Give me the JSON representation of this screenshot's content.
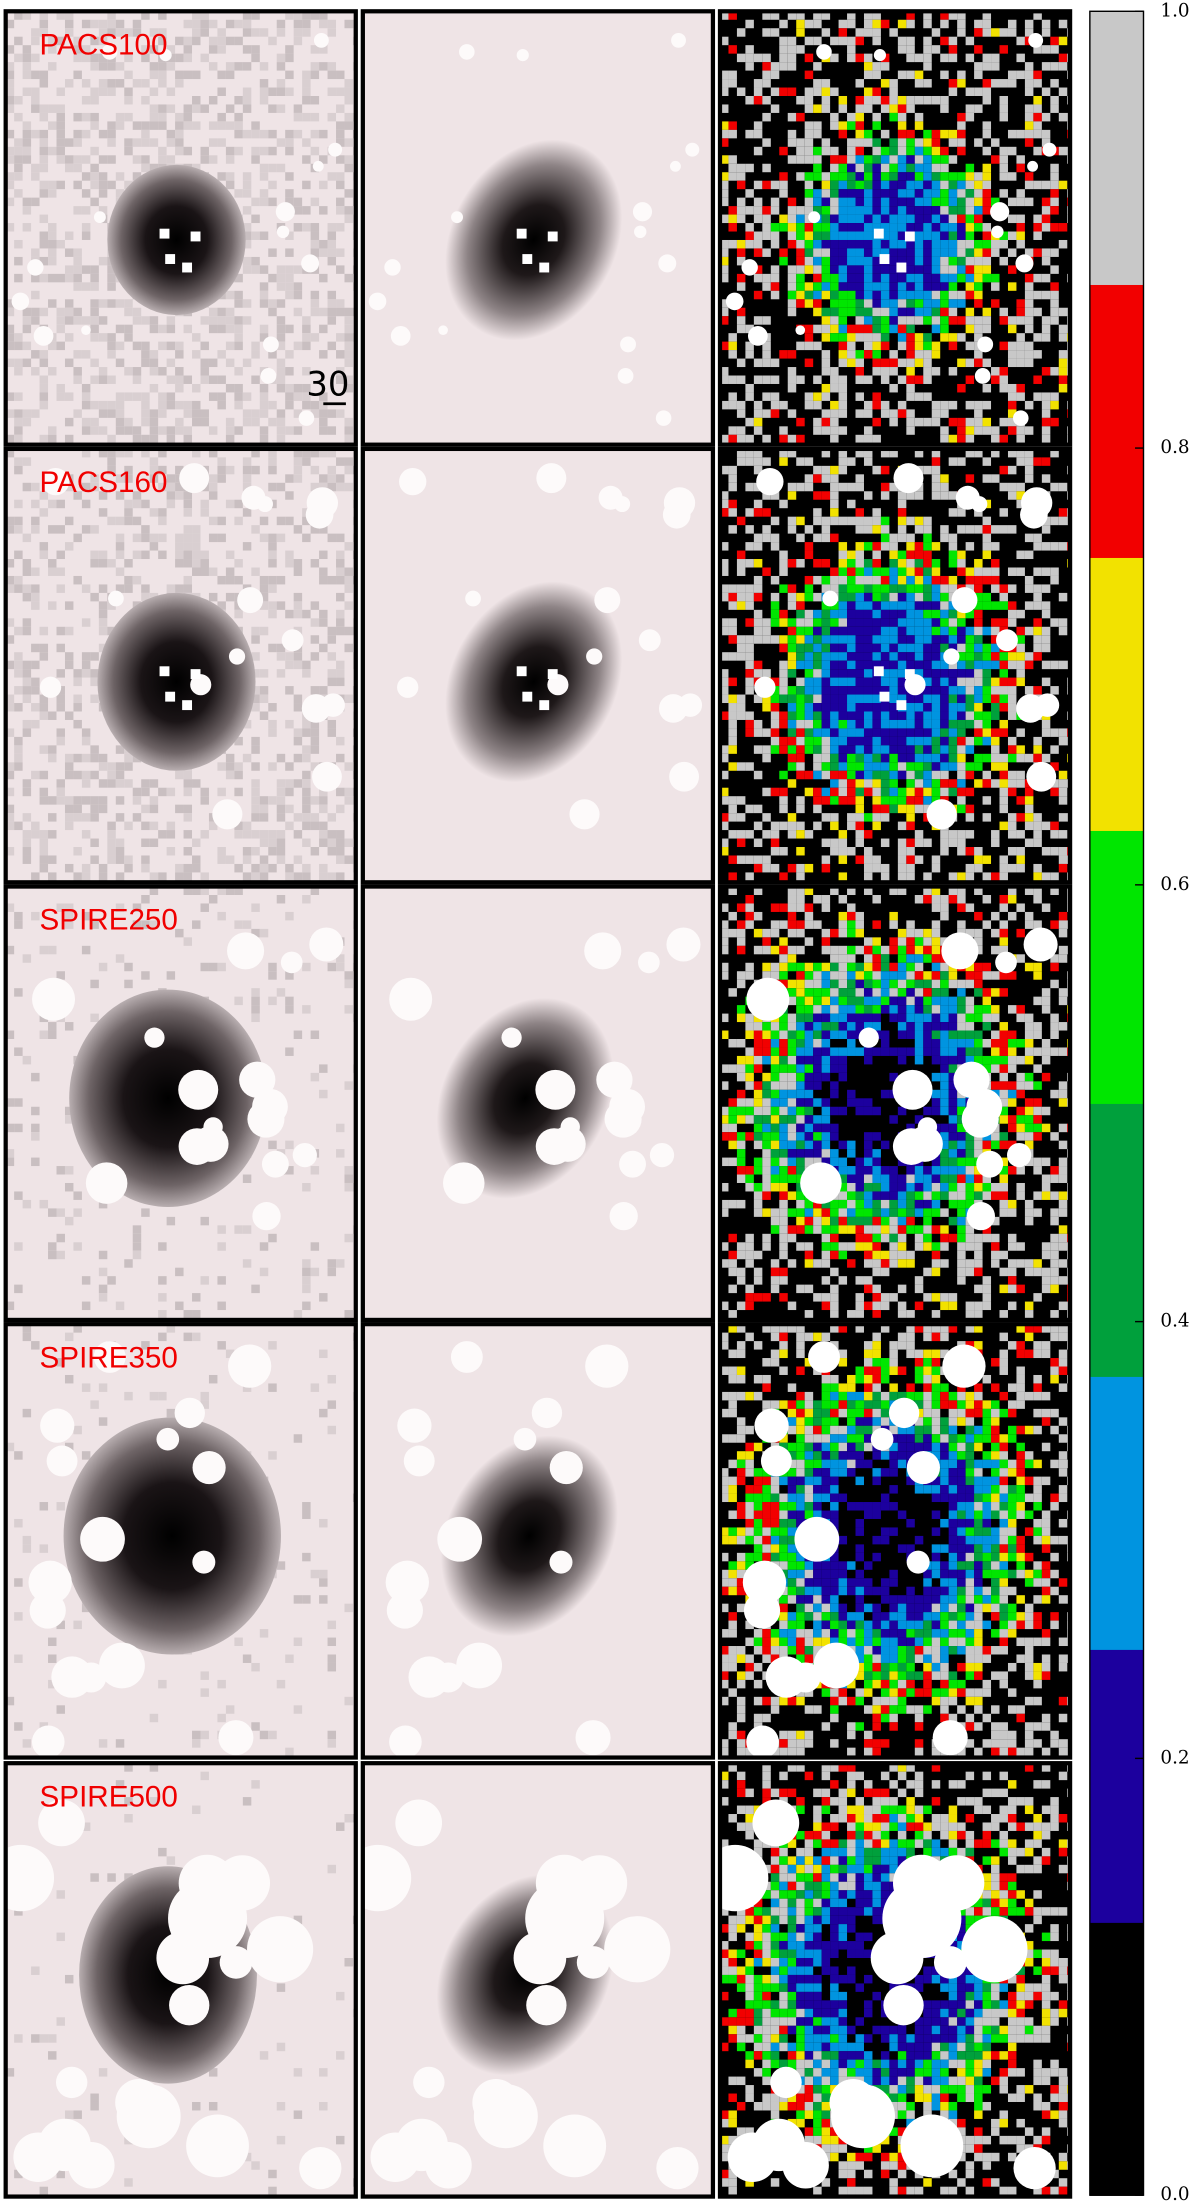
{
  "chart_data": {
    "type": "colorbar",
    "ylim": [
      0,
      1
    ],
    "yticks": [
      {
        "value": 0,
        "label": "0.0"
      },
      0.2,
      0.4,
      0.6,
      0.8,
      {
        "value": 1,
        "label": "1.0"
      }
    ],
    "colors": [
      "#000000",
      "#1c009e",
      "#0094e0",
      "#00a03c",
      "#00e600",
      "#f2e200",
      "#f20000",
      "#c8c8c8"
    ]
  },
  "panels": {
    "rows": [
      {
        "band": "PACS100"
      },
      {
        "band": "PACS160"
      },
      {
        "band": "SPIRE250"
      },
      {
        "band": "SPIRE350"
      },
      {
        "band": "SPIRE500"
      }
    ]
  },
  "scale_bar": {
    "label": "30"
  }
}
